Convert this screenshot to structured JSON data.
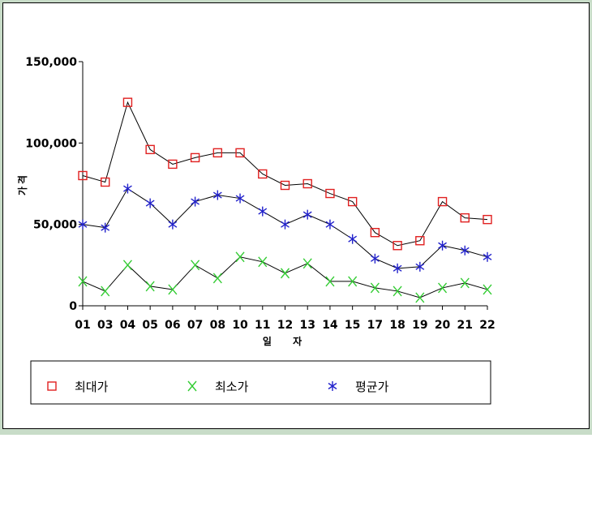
{
  "chart_data": {
    "type": "line",
    "title": "",
    "xlabel": "일 자",
    "ylabel": "가격",
    "categories": [
      "01",
      "03",
      "04",
      "05",
      "06",
      "07",
      "08",
      "10",
      "11",
      "12",
      "13",
      "14",
      "15",
      "17",
      "18",
      "19",
      "20",
      "21",
      "22"
    ],
    "ylim": [
      0,
      150000
    ],
    "yticks": [
      0,
      50000,
      100000,
      150000
    ],
    "ytick_labels": [
      "0",
      "50,000",
      "100,000",
      "150,000"
    ],
    "grid": false,
    "legend_position": "bottom",
    "series": [
      {
        "name": "최대가",
        "marker": "square",
        "color": "#e02020",
        "values": [
          80000,
          76000,
          125000,
          96000,
          87000,
          91000,
          94000,
          94000,
          81000,
          74000,
          75000,
          69000,
          64000,
          45000,
          37000,
          40000,
          64000,
          54000,
          53000
        ]
      },
      {
        "name": "최소가",
        "marker": "x",
        "color": "#33cc33",
        "values": [
          15000,
          9000,
          25000,
          12000,
          10000,
          25000,
          17000,
          30000,
          27000,
          20000,
          26000,
          15000,
          15000,
          11000,
          9000,
          5000,
          11000,
          14000,
          10000
        ]
      },
      {
        "name": "평균가",
        "marker": "asterisk",
        "color": "#2222cc",
        "values": [
          50000,
          48000,
          72000,
          63000,
          50000,
          64000,
          68000,
          66000,
          58000,
          50000,
          56000,
          50000,
          41000,
          29000,
          23000,
          24000,
          37000,
          34000,
          30000
        ]
      }
    ]
  }
}
